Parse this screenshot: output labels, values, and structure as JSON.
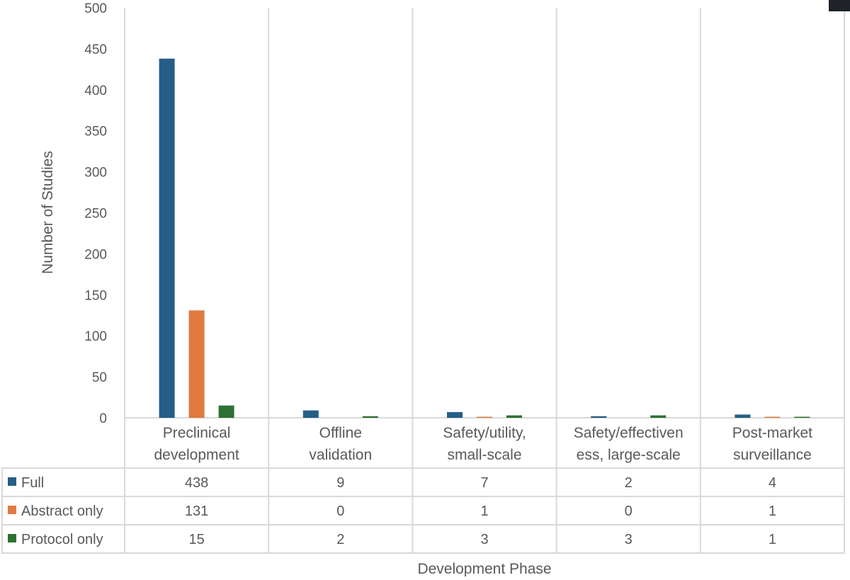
{
  "chart_data": {
    "type": "bar",
    "title": "",
    "xlabel": "Development Phase",
    "ylabel": "Number of Studies",
    "ylim": [
      0,
      500
    ],
    "yticks": [
      0,
      50,
      100,
      150,
      200,
      250,
      300,
      350,
      400,
      450,
      500
    ],
    "grid": "vertical category separators",
    "legend": "data-table",
    "categories": [
      [
        "Preclinical",
        "development"
      ],
      [
        "Offline",
        "validation"
      ],
      [
        "Safety/utility,",
        "small-scale"
      ],
      [
        "Safety/effectiven",
        "ess, large-scale"
      ],
      [
        "Post-market",
        "surveillance"
      ]
    ],
    "series": [
      {
        "name": "Full",
        "color": "#255e86",
        "values": [
          438,
          9,
          7,
          2,
          4
        ]
      },
      {
        "name": "Abstract only",
        "color": "#e07a3f",
        "values": [
          131,
          0,
          1,
          0,
          1
        ]
      },
      {
        "name": "Protocol only",
        "color": "#2e7032",
        "values": [
          15,
          2,
          3,
          3,
          1
        ]
      }
    ]
  }
}
